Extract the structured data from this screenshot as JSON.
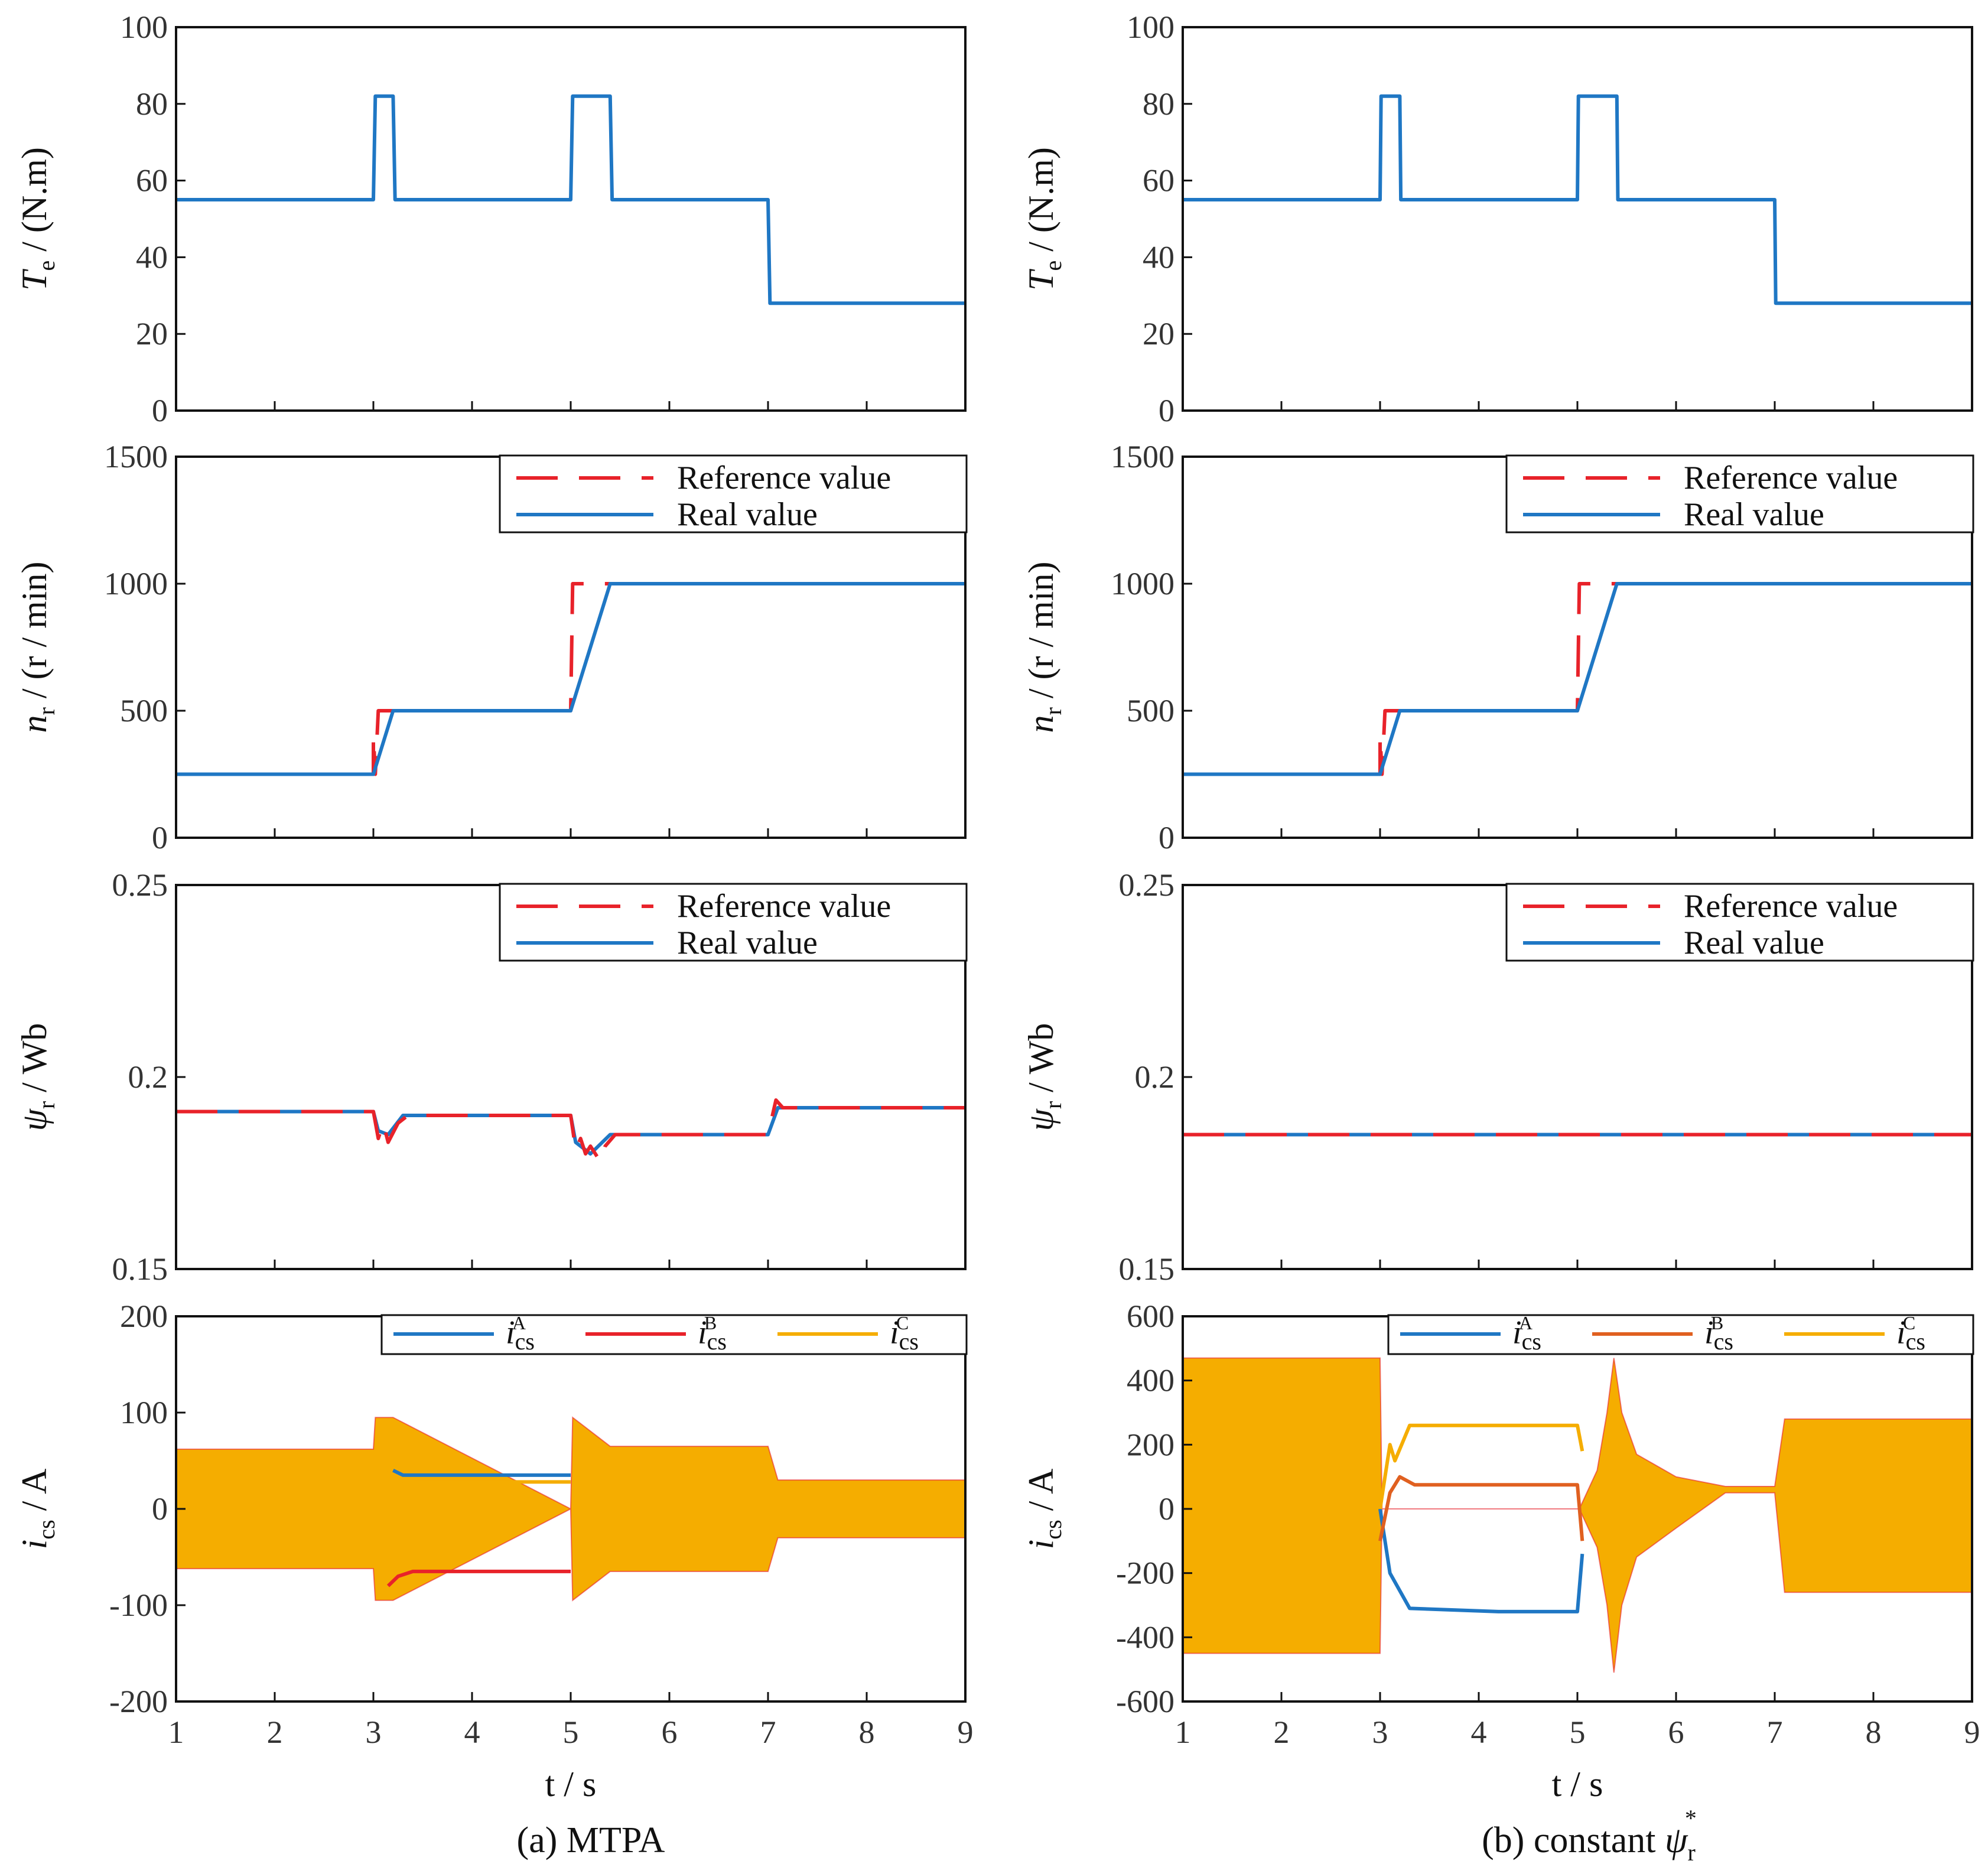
{
  "chart_data": [
    {
      "type": "line",
      "column": "a",
      "row": 0,
      "ylabel_symbol": "T",
      "ylabel_sub": "e",
      "ylabel_unit": " / (N.m)",
      "ylim": [
        0,
        100
      ],
      "yticks": [
        "0",
        "20",
        "40",
        "60",
        "80",
        "100"
      ],
      "xlim": [
        1,
        9
      ],
      "grid": false,
      "series": [
        {
          "name": "Te",
          "color": "#1f77c4",
          "x": [
            1,
            3,
            3.02,
            3.2,
            3.22,
            5,
            5.02,
            5.4,
            5.42,
            7,
            7.02,
            9
          ],
          "y": [
            55,
            55,
            82,
            82,
            55,
            55,
            82,
            82,
            55,
            55,
            28,
            28
          ]
        }
      ]
    },
    {
      "type": "line",
      "column": "b",
      "row": 0,
      "ylabel_symbol": "T",
      "ylabel_sub": "e",
      "ylabel_unit": " / (N.m)",
      "ylim": [
        0,
        100
      ],
      "yticks": [
        "0",
        "20",
        "40",
        "60",
        "80",
        "100"
      ],
      "xlim": [
        1,
        9
      ],
      "grid": false,
      "series": [
        {
          "name": "Te",
          "color": "#1f77c4",
          "x": [
            1,
            3,
            3.01,
            3.2,
            3.21,
            5,
            5.01,
            5.4,
            5.41,
            7,
            7.01,
            9
          ],
          "y": [
            55,
            55,
            82,
            82,
            55,
            55,
            82,
            82,
            55,
            55,
            28,
            28
          ]
        }
      ]
    },
    {
      "type": "line",
      "column": "a",
      "row": 1,
      "ylabel_symbol": "n",
      "ylabel_sub": "r",
      "ylabel_unit": " / (r / min)",
      "ylim": [
        0,
        1500
      ],
      "yticks": [
        "0",
        "500",
        "1000",
        "1500"
      ],
      "xlim": [
        1,
        9
      ],
      "grid": false,
      "legend": {
        "entries": [
          "Reference value",
          "Real value"
        ],
        "placement": "top-right"
      },
      "series": [
        {
          "name": "Reference value",
          "color": "#e8222a",
          "dash": true,
          "x": [
            1,
            3,
            3,
            3.02,
            3.05,
            3.2,
            5,
            5.02,
            5.06,
            9
          ],
          "y": [
            250,
            250,
            400,
            250,
            500,
            500,
            500,
            1000,
            1000,
            1000
          ]
        },
        {
          "name": "Real value",
          "color": "#1f77c4",
          "x": [
            1,
            3,
            3.2,
            5,
            5.4,
            9
          ],
          "y": [
            250,
            250,
            500,
            500,
            1000,
            1000
          ]
        }
      ]
    },
    {
      "type": "line",
      "column": "b",
      "row": 1,
      "ylabel_symbol": "n",
      "ylabel_sub": "r",
      "ylabel_unit": " / (r / min)",
      "ylim": [
        0,
        1500
      ],
      "yticks": [
        "0",
        "500",
        "1000",
        "1500"
      ],
      "xlim": [
        1,
        9
      ],
      "grid": false,
      "legend": {
        "entries": [
          "Reference value",
          "Real value"
        ],
        "placement": "top-right"
      },
      "series": [
        {
          "name": "Reference value",
          "color": "#e8222a",
          "dash": true,
          "x": [
            1,
            3,
            3,
            3.02,
            3.05,
            3.2,
            5,
            5.02,
            5.06,
            9
          ],
          "y": [
            250,
            250,
            400,
            250,
            500,
            500,
            500,
            1000,
            1000,
            1000
          ]
        },
        {
          "name": "Real value",
          "color": "#1f77c4",
          "x": [
            1,
            3,
            3.2,
            5,
            5.4,
            9
          ],
          "y": [
            250,
            250,
            500,
            500,
            1000,
            1000
          ]
        }
      ]
    },
    {
      "type": "line",
      "column": "a",
      "row": 2,
      "ylabel_symbol": "ψ",
      "ylabel_sub": "r",
      "ylabel_unit": " / Wb",
      "ylim": [
        0.15,
        0.25
      ],
      "yticks": [
        "0.15",
        "0.2",
        "0.25"
      ],
      "xlim": [
        1,
        9
      ],
      "grid": false,
      "legend": {
        "entries": [
          "Reference value",
          "Real value"
        ],
        "placement": "top-right"
      },
      "series": [
        {
          "name": "Real value",
          "color": "#1f77c4",
          "x": [
            1,
            3,
            3.05,
            3.15,
            3.3,
            5,
            5.05,
            5.2,
            5.4,
            7,
            7.1,
            9
          ],
          "y": [
            0.191,
            0.191,
            0.186,
            0.185,
            0.19,
            0.19,
            0.183,
            0.18,
            0.185,
            0.185,
            0.192,
            0.192
          ]
        },
        {
          "name": "Reference value",
          "color": "#e8222a",
          "dash": true,
          "x": [
            1,
            3,
            3.05,
            3.1,
            3.15,
            3.25,
            3.35,
            5,
            5.05,
            5.1,
            5.15,
            5.2,
            5.3,
            5.35,
            5.45,
            7,
            7.08,
            7.15,
            9
          ],
          "y": [
            0.191,
            0.191,
            0.184,
            0.188,
            0.183,
            0.188,
            0.19,
            0.19,
            0.181,
            0.184,
            0.18,
            0.182,
            0.178,
            0.182,
            0.185,
            0.185,
            0.194,
            0.192,
            0.192
          ]
        }
      ]
    },
    {
      "type": "line",
      "column": "b",
      "row": 2,
      "ylabel_symbol": "ψ",
      "ylabel_sub": "r",
      "ylabel_unit": " / Wb",
      "ylim": [
        0.15,
        0.25
      ],
      "yticks": [
        "0.15",
        "0.2",
        "0.25"
      ],
      "xlim": [
        1,
        9
      ],
      "grid": false,
      "legend": {
        "entries": [
          "Reference value",
          "Real value"
        ],
        "placement": "top-right"
      },
      "series": [
        {
          "name": "Real value",
          "color": "#1f77c4",
          "x": [
            1,
            9
          ],
          "y": [
            0.185,
            0.185
          ]
        },
        {
          "name": "Reference value",
          "color": "#e8222a",
          "dash": true,
          "x": [
            1,
            9
          ],
          "y": [
            0.185,
            0.185
          ]
        }
      ]
    },
    {
      "type": "area",
      "column": "a",
      "row": 3,
      "ylabel_symbol": "i",
      "ylabel_sub": "cs",
      "ylabel_unit": " / A",
      "ylim": [
        -200,
        200
      ],
      "yticks": [
        "-200",
        "-100",
        "0",
        "100",
        "200"
      ],
      "xlim": [
        1,
        9
      ],
      "xticks": [
        "1",
        "2",
        "3",
        "4",
        "5",
        "6",
        "7",
        "8",
        "9"
      ],
      "xlabel": "t / s",
      "grid": false,
      "legend": {
        "entries": [
          "i_cs^A",
          "i_cs^B",
          "i_cs^C"
        ],
        "placement": "top-right"
      },
      "envelope": {
        "x": [
          1,
          3,
          3.02,
          3.2,
          5,
          5.02,
          5.4,
          7,
          7.1,
          9
        ],
        "upper": [
          62,
          62,
          95,
          95,
          0,
          95,
          65,
          65,
          30,
          30
        ],
        "lower": [
          -62,
          -62,
          -95,
          -95,
          0,
          -95,
          -65,
          -65,
          -30,
          -30
        ]
      },
      "series": [
        {
          "name": "i_cs^A",
          "color": "#1f77c4",
          "x": [
            3.2,
            3.3,
            5
          ],
          "y": [
            40,
            35,
            35
          ]
        },
        {
          "name": "i_cs^B",
          "color": "#e8222a",
          "x": [
            3.15,
            3.25,
            3.4,
            5
          ],
          "y": [
            -80,
            -70,
            -65,
            -65
          ]
        },
        {
          "name": "i_cs^C",
          "color": "#f5ad00",
          "x": [
            3.15,
            3.25,
            3.4,
            5
          ],
          "y": [
            40,
            30,
            28,
            28
          ]
        }
      ]
    },
    {
      "type": "area",
      "column": "b",
      "row": 3,
      "ylabel_symbol": "i",
      "ylabel_sub": "cs",
      "ylabel_unit": " / A",
      "ylim": [
        -600,
        600
      ],
      "yticks": [
        "-600",
        "-400",
        "-200",
        "0",
        "200",
        "400",
        "600"
      ],
      "xlim": [
        1,
        9
      ],
      "xticks": [
        "1",
        "2",
        "3",
        "4",
        "5",
        "6",
        "7",
        "8",
        "9"
      ],
      "xlabel": "t / s",
      "grid": false,
      "legend": {
        "entries": [
          "i_cs^A",
          "i_cs^B",
          "i_cs^C"
        ],
        "placement": "top-right"
      },
      "envelope": {
        "x": [
          1,
          3,
          3.02,
          5.02,
          5.2,
          5.3,
          5.37,
          5.45,
          5.6,
          6,
          6.5,
          7,
          7.1,
          9
        ],
        "upper": [
          470,
          470,
          0,
          0,
          120,
          300,
          470,
          300,
          170,
          100,
          70,
          70,
          280,
          280
        ],
        "lower": [
          -450,
          -450,
          0,
          0,
          -120,
          -300,
          -510,
          -300,
          -150,
          -60,
          50,
          50,
          -260,
          -260
        ]
      },
      "series": [
        {
          "name": "i_cs^A",
          "color": "#1f77c4",
          "x": [
            3,
            3.1,
            3.3,
            4.2,
            5,
            5.05
          ],
          "y": [
            0,
            -200,
            -310,
            -320,
            -320,
            -140
          ]
        },
        {
          "name": "i_cs^B",
          "color": "#e06020",
          "x": [
            3,
            3.1,
            3.2,
            3.35,
            5,
            5.05
          ],
          "y": [
            -100,
            50,
            100,
            75,
            75,
            -100
          ]
        },
        {
          "name": "i_cs^C",
          "color": "#f5ad00",
          "x": [
            3,
            3.1,
            3.15,
            3.3,
            5,
            5.05
          ],
          "y": [
            0,
            200,
            150,
            260,
            260,
            180
          ]
        }
      ]
    }
  ],
  "captions": {
    "a": "(a) MTPA",
    "b_prefix": "(b) constant ",
    "b_symbol": "ψ",
    "b_sub": "r",
    "b_sup": "*"
  }
}
